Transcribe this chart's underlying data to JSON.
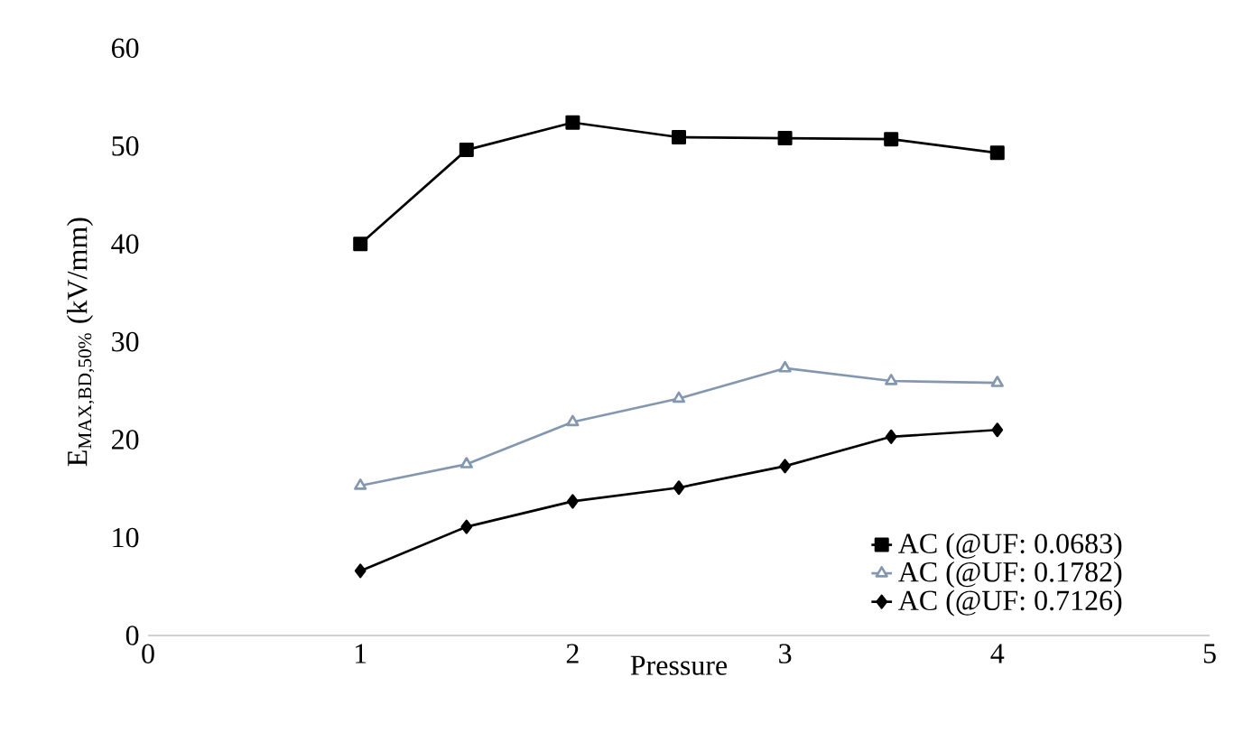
{
  "chart_data": {
    "type": "line",
    "xlabel": "Pressure",
    "ylabel": "E$_{MAX,BD,50%}$ (kV/mm)",
    "x": [
      1,
      1.5,
      2,
      2.5,
      3,
      3.5,
      4
    ],
    "series": [
      {
        "name": "AC (@UF: 0.0683)",
        "color": "#000000",
        "marker": "square",
        "values": [
          40.0,
          49.6,
          52.4,
          50.9,
          50.8,
          50.7,
          49.3
        ]
      },
      {
        "name": "AC (@UF: 0.1782)",
        "color": "#8497b0",
        "marker": "triangle",
        "values": [
          15.3,
          17.5,
          21.8,
          24.2,
          27.3,
          26.0,
          25.8
        ]
      },
      {
        "name": "AC (@UF: 0.7126)",
        "color": "#000000",
        "marker": "diamond",
        "values": [
          6.6,
          11.1,
          13.7,
          15.1,
          17.3,
          20.3,
          21.0
        ]
      }
    ],
    "xlim": [
      0,
      5
    ],
    "xticks": [
      0,
      1,
      2,
      3,
      4,
      5
    ],
    "ylim": [
      0,
      60
    ],
    "yticks": [
      0,
      10,
      20,
      30,
      40,
      50,
      60
    ],
    "grid": false,
    "legend": "bottom right",
    "line_style": "solid"
  }
}
